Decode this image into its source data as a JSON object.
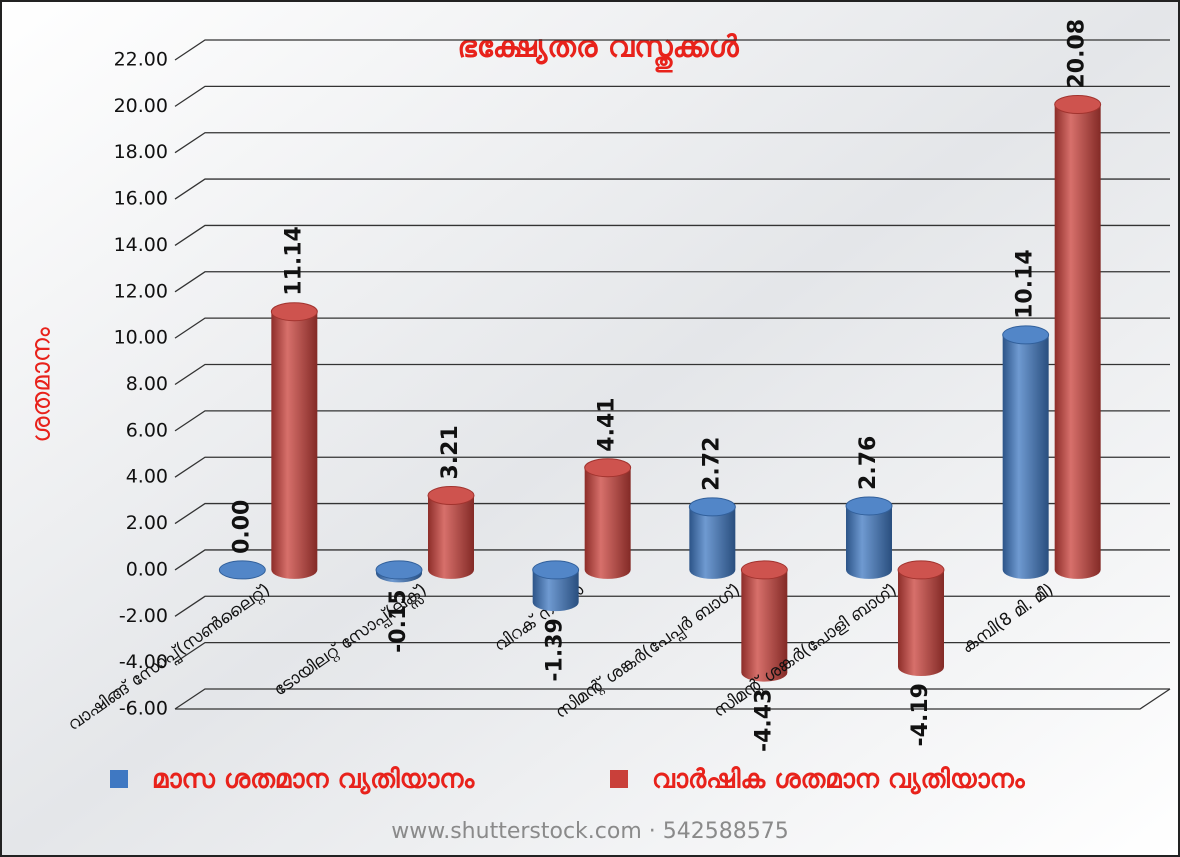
{
  "chart_data": {
    "type": "bar",
    "title": "ഭക്ഷ്യേതര വസ്തുക്കൾ",
    "y_label": "ശതമാനം",
    "footer": "www.shutterstock.com · 542588575",
    "categories": [
      "വാഷിങ്ങ് സോപ്പ്(സൺലൈറ്റ്)",
      "ടോയിലറ്റ് സോപ്പ്(ലക്സ്)",
      "വിറക് നാടൻ",
      "സിമന്റ് ശങ്കർ(പേപ്പർ ബാഗ്)",
      "സിമന്റ് ശങ്കർ(പോളി ബാഗ്)",
      "കമ്പി(8 മി. മീ)"
    ],
    "series": [
      {
        "name": "മാസ ശതമാന വ്യതിയാനം",
        "color": "#3f78c2",
        "values": [
          0,
          -0.15,
          -1.39,
          2.72,
          2.76,
          10.14
        ],
        "value_labels": [
          "0.00",
          "-0.15",
          "-1.39",
          "2.72",
          "2.76",
          "10.14"
        ]
      },
      {
        "name": "വാർഷിക ശതമാന വ്യതിയാനം",
        "color": "#c9403a",
        "values": [
          11.14,
          3.21,
          4.41,
          -4.43,
          -4.19,
          20.08
        ],
        "value_labels": [
          "11.14",
          "3.21",
          "4.41",
          "-4.43",
          "-4.19",
          "20.08"
        ]
      }
    ],
    "ylim": [
      -6,
      22
    ],
    "yticks": [
      {
        "value": -6,
        "label": "-6.00"
      },
      {
        "value": -4,
        "label": "-4.00"
      },
      {
        "value": -2,
        "label": "-2.00"
      },
      {
        "value": 0,
        "label": "0.00"
      },
      {
        "value": 2,
        "label": "2.00"
      },
      {
        "value": 4,
        "label": "4.00"
      },
      {
        "value": 6,
        "label": "6.00"
      },
      {
        "value": 8,
        "label": "8.00"
      },
      {
        "value": 10,
        "label": "10.00"
      },
      {
        "value": 12,
        "label": "12.00"
      },
      {
        "value": 14,
        "label": "14.00"
      },
      {
        "value": 16,
        "label": "16.00"
      },
      {
        "value": 18,
        "label": "18.00"
      },
      {
        "value": 20,
        "label": "20.00"
      },
      {
        "value": 22,
        "label": "22.00"
      }
    ],
    "grid": true
  }
}
